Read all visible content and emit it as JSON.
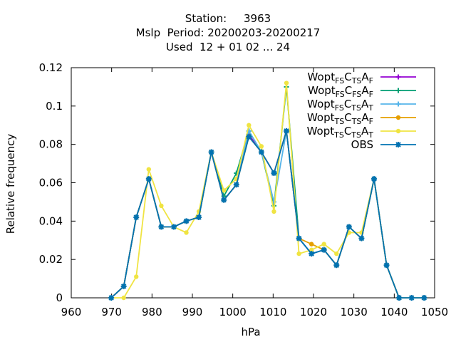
{
  "title": {
    "line1": "Station:     3963",
    "line2": "Mslp  Period: 20200203-20200217",
    "line3": "Used  12 + 01 02 ... 24"
  },
  "chart_data": {
    "type": "line",
    "xlabel": "hPa",
    "ylabel": "Relative frequency",
    "xlim": [
      960,
      1050
    ],
    "ylim": [
      0,
      0.12
    ],
    "xticks": [
      960,
      970,
      980,
      990,
      1000,
      1010,
      1020,
      1030,
      1040,
      1050
    ],
    "yticks": [
      0,
      0.02,
      0.04,
      0.06,
      0.08,
      0.1,
      0.12
    ],
    "ytick_labels": [
      "0",
      "0.02",
      "0.04",
      "0.06",
      "0.08",
      "0.1",
      "0.12"
    ],
    "legend_position": "top-right",
    "series": [
      {
        "id": "s1",
        "legend_main": "Wopt",
        "legend_subs": [
          "FS",
          "TS",
          "F"
        ],
        "color": "#9400d3",
        "marker": "cross",
        "x": [
          969.9,
          973.0,
          976.1,
          979.2,
          982.3,
          985.4,
          988.5,
          991.6,
          994.7,
          997.8,
          1000.9,
          1004.0,
          1007.1,
          1010.2,
          1013.3,
          1016.4,
          1019.5,
          1022.6,
          1025.7,
          1028.8,
          1031.9,
          1035.0,
          1038.1,
          1041.2,
          1044.3,
          1047.4
        ],
        "values": [
          0.0,
          0.006,
          0.042,
          0.062,
          0.037,
          0.037,
          0.04,
          0.042,
          0.076,
          0.051,
          0.059,
          0.085,
          0.076,
          0.065,
          0.087,
          0.031,
          0.023,
          0.025,
          0.017,
          0.037,
          0.031,
          0.062,
          0.017,
          0.0,
          0.0,
          0.0
        ]
      },
      {
        "id": "s2",
        "legend_main": "Wopt",
        "legend_subs": [
          "FS",
          "FS",
          "F"
        ],
        "color": "#009e73",
        "marker": "cross",
        "x": [
          969.9,
          973.0,
          976.1,
          979.2,
          982.3,
          985.4,
          988.5,
          991.6,
          994.7,
          997.8,
          1000.9,
          1004.0,
          1007.1,
          1010.2,
          1013.3,
          1016.4,
          1019.5,
          1022.6,
          1025.7,
          1028.8,
          1031.9,
          1035.0,
          1038.1,
          1041.2,
          1044.3,
          1047.4
        ],
        "values": [
          0.0,
          0.006,
          0.042,
          0.062,
          0.037,
          0.037,
          0.04,
          0.042,
          0.076,
          0.053,
          0.065,
          0.087,
          0.076,
          0.048,
          0.11,
          0.031,
          0.023,
          0.025,
          0.017,
          0.037,
          0.031,
          0.062,
          0.017,
          0.0,
          0.0,
          0.0
        ]
      },
      {
        "id": "s3",
        "legend_main": "Wopt",
        "legend_subs": [
          "FS",
          "TS",
          "T"
        ],
        "color": "#56b4e9",
        "marker": "cross",
        "x": [
          969.9,
          973.0,
          976.1,
          979.2,
          982.3,
          985.4,
          988.5,
          991.6,
          994.7,
          997.8,
          1000.9,
          1004.0,
          1007.1,
          1010.2,
          1013.3,
          1016.4,
          1019.5,
          1022.6,
          1025.7,
          1028.8,
          1031.9,
          1035.0,
          1038.1,
          1041.2,
          1044.3,
          1047.4
        ],
        "values": [
          0.0,
          0.006,
          0.042,
          0.062,
          0.037,
          0.037,
          0.04,
          0.042,
          0.076,
          0.051,
          0.059,
          0.087,
          0.076,
          0.05,
          0.087,
          0.031,
          0.023,
          0.025,
          0.017,
          0.037,
          0.031,
          0.062,
          0.017,
          0.0,
          0.0,
          0.0
        ]
      },
      {
        "id": "s4",
        "legend_main": "Wopt",
        "legend_subs": [
          "TS",
          "TS",
          "F"
        ],
        "color": "#e69f00",
        "marker": "circle",
        "x": [
          969.9,
          973.0,
          976.1,
          979.2,
          982.3,
          985.4,
          988.5,
          991.6,
          994.7,
          997.8,
          1000.9,
          1004.0,
          1007.1,
          1010.2,
          1013.3,
          1016.4,
          1019.5,
          1022.6,
          1025.7,
          1028.8,
          1031.9,
          1035.0,
          1038.1,
          1041.2,
          1044.3,
          1047.4
        ],
        "values": [
          0.0,
          0.006,
          0.042,
          0.062,
          0.037,
          0.037,
          0.04,
          0.042,
          0.076,
          0.051,
          0.059,
          0.084,
          0.076,
          0.065,
          0.087,
          0.031,
          0.028,
          0.025,
          0.017,
          0.037,
          0.031,
          0.062,
          0.017,
          0.0,
          0.0,
          0.0
        ]
      },
      {
        "id": "s5",
        "legend_main": "Wopt",
        "legend_subs": [
          "TS",
          "TS",
          "T"
        ],
        "color": "#f0e442",
        "marker": "circle",
        "x": [
          969.9,
          973.0,
          976.1,
          979.2,
          982.3,
          985.4,
          988.5,
          991.6,
          994.7,
          997.8,
          1000.9,
          1004.0,
          1007.1,
          1010.2,
          1013.3,
          1016.4,
          1019.5,
          1022.6,
          1025.7,
          1028.8,
          1031.9,
          1035.0,
          1038.1,
          1041.2,
          1044.3,
          1047.4
        ],
        "values": [
          0.0,
          0.0,
          0.011,
          0.067,
          0.048,
          0.037,
          0.034,
          0.045,
          0.076,
          0.056,
          0.062,
          0.09,
          0.079,
          0.045,
          0.112,
          0.023,
          0.025,
          0.028,
          0.023,
          0.034,
          0.034,
          0.062,
          0.017,
          0.0,
          0.0,
          0.0
        ]
      },
      {
        "id": "s6",
        "legend_main": "OBS",
        "legend_subs": [],
        "color": "#0072b2",
        "marker": "star",
        "x": [
          969.9,
          973.0,
          976.1,
          979.2,
          982.3,
          985.4,
          988.5,
          991.6,
          994.7,
          997.8,
          1000.9,
          1004.0,
          1007.1,
          1010.2,
          1013.3,
          1016.4,
          1019.5,
          1022.6,
          1025.7,
          1028.8,
          1031.9,
          1035.0,
          1038.1,
          1041.2,
          1044.3,
          1047.4
        ],
        "values": [
          0.0,
          0.006,
          0.042,
          0.062,
          0.037,
          0.037,
          0.04,
          0.042,
          0.076,
          0.051,
          0.059,
          0.084,
          0.076,
          0.065,
          0.087,
          0.031,
          0.023,
          0.025,
          0.017,
          0.037,
          0.031,
          0.062,
          0.017,
          0.0,
          0.0,
          0.0
        ]
      }
    ]
  }
}
